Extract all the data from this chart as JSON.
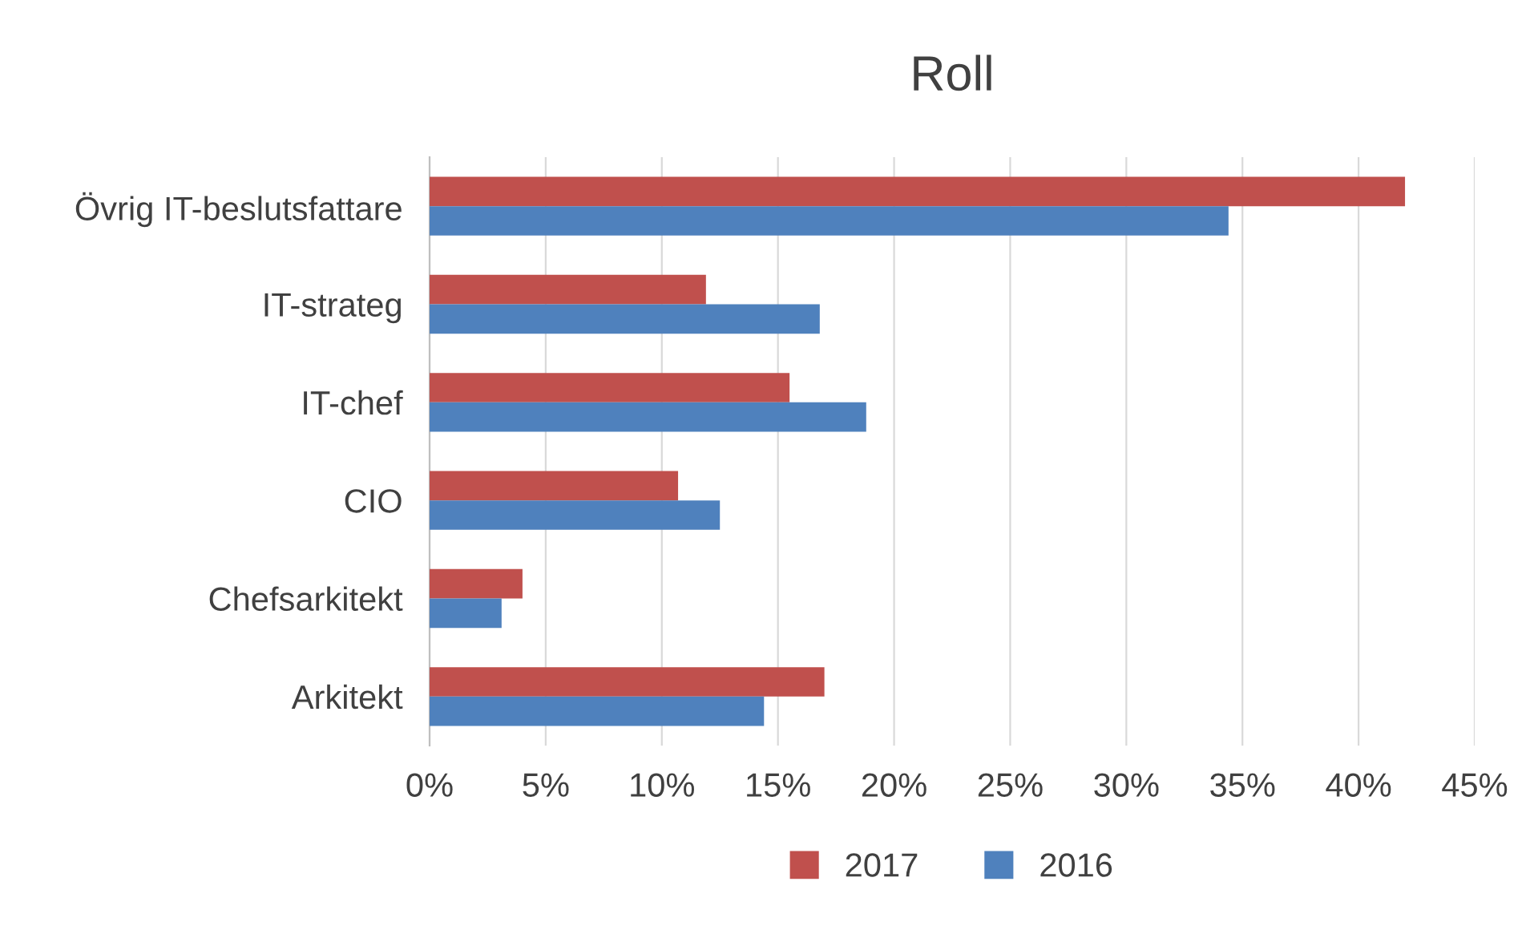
{
  "chart_data": {
    "type": "bar",
    "title": "Roll",
    "orientation": "horizontal",
    "categories": [
      "Övrig IT-beslutsfattare",
      "IT-strateg",
      "IT-chef",
      "CIO",
      "Chefsarkitekt",
      "Arkitekt"
    ],
    "series": [
      {
        "name": "2017",
        "color": "#c0504d",
        "values": [
          42.0,
          11.9,
          15.5,
          10.7,
          4.0,
          17.0
        ]
      },
      {
        "name": "2016",
        "color": "#4f81bd",
        "values": [
          34.4,
          16.8,
          18.8,
          12.5,
          3.1,
          14.4
        ]
      }
    ],
    "xlim": [
      0,
      45
    ],
    "xticks": [
      {
        "value": 0,
        "label": "0%"
      },
      {
        "value": 5,
        "label": "5%"
      },
      {
        "value": 10,
        "label": "10%"
      },
      {
        "value": 15,
        "label": "15%"
      },
      {
        "value": 20,
        "label": "20%"
      },
      {
        "value": 25,
        "label": "25%"
      },
      {
        "value": 30,
        "label": "30%"
      },
      {
        "value": 35,
        "label": "35%"
      },
      {
        "value": 40,
        "label": "40%"
      },
      {
        "value": 45,
        "label": "45%"
      }
    ],
    "grid": "x",
    "legend": "bottom"
  }
}
